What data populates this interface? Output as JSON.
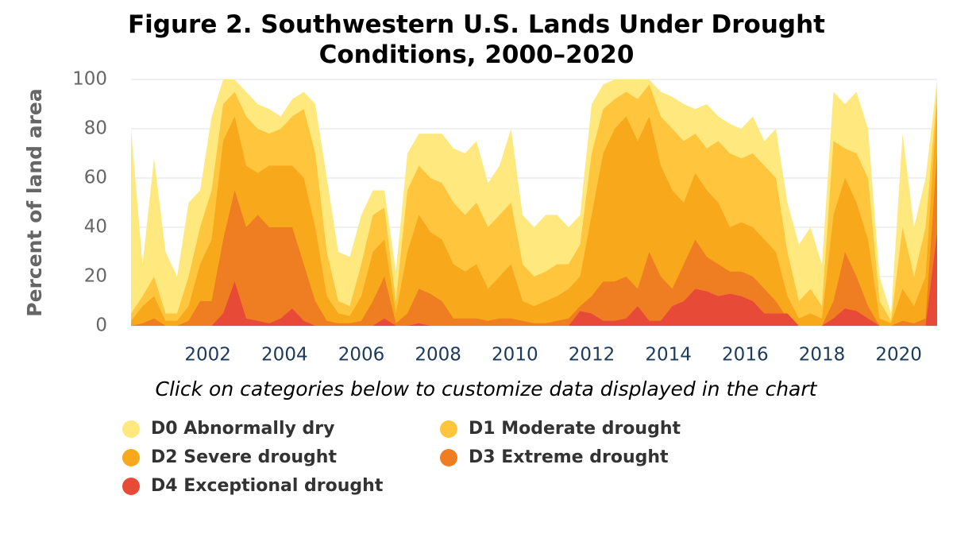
{
  "chart_data": {
    "type": "area",
    "title": "Figure 2. Southwestern U.S. Lands Under Drought Conditions, 2000–2020",
    "subtitle": "Click on categories below to customize data displayed in the chart",
    "y_label": "Percent of land area",
    "xlim": [
      2000,
      2021
    ],
    "xticks": [
      2002,
      2004,
      2006,
      2008,
      2010,
      2012,
      2014,
      2016,
      2018,
      2020
    ],
    "ylim": [
      0,
      100
    ],
    "yticks": [
      0,
      20,
      40,
      60,
      80,
      100
    ],
    "grid": true,
    "x": [
      2000.0,
      2000.3,
      2000.6,
      2000.9,
      2001.2,
      2001.5,
      2001.8,
      2002.1,
      2002.4,
      2002.7,
      2003.0,
      2003.3,
      2003.6,
      2003.9,
      2004.2,
      2004.5,
      2004.8,
      2005.1,
      2005.4,
      2005.7,
      2006.0,
      2006.3,
      2006.6,
      2006.9,
      2007.2,
      2007.5,
      2007.8,
      2008.1,
      2008.4,
      2008.7,
      2009.0,
      2009.3,
      2009.6,
      2009.9,
      2010.2,
      2010.5,
      2010.8,
      2011.1,
      2011.4,
      2011.7,
      2012.0,
      2012.3,
      2012.6,
      2012.9,
      2013.2,
      2013.5,
      2013.8,
      2014.1,
      2014.4,
      2014.7,
      2015.0,
      2015.3,
      2015.6,
      2015.9,
      2016.2,
      2016.5,
      2016.8,
      2017.1,
      2017.4,
      2017.7,
      2018.0,
      2018.3,
      2018.6,
      2018.9,
      2019.2,
      2019.5,
      2019.8,
      2020.1,
      2020.4,
      2020.7,
      2021.0
    ],
    "series": [
      {
        "name": "D0 Abnormally dry",
        "color": "#ffe97f",
        "values": [
          80,
          25,
          68,
          30,
          20,
          50,
          55,
          85,
          100,
          100,
          95,
          90,
          88,
          85,
          92,
          95,
          90,
          60,
          30,
          28,
          45,
          55,
          55,
          22,
          70,
          78,
          78,
          78,
          72,
          70,
          75,
          58,
          65,
          80,
          45,
          40,
          45,
          45,
          40,
          45,
          90,
          98,
          100,
          100,
          100,
          100,
          95,
          93,
          90,
          88,
          90,
          85,
          82,
          80,
          85,
          75,
          80,
          50,
          33,
          40,
          25,
          95,
          90,
          95,
          80,
          20,
          5,
          78,
          40,
          60,
          100
        ]
      },
      {
        "name": "D1 Moderate drought",
        "color": "#fec53d",
        "values": [
          5,
          12,
          20,
          5,
          5,
          20,
          40,
          55,
          90,
          95,
          85,
          80,
          78,
          80,
          85,
          88,
          70,
          30,
          10,
          8,
          25,
          45,
          48,
          10,
          55,
          65,
          60,
          58,
          50,
          45,
          50,
          40,
          45,
          50,
          25,
          20,
          22,
          25,
          25,
          33,
          70,
          88,
          92,
          95,
          92,
          98,
          85,
          80,
          75,
          78,
          72,
          75,
          70,
          68,
          70,
          65,
          60,
          30,
          10,
          15,
          8,
          75,
          72,
          70,
          60,
          10,
          2,
          40,
          20,
          40,
          95
        ]
      },
      {
        "name": "D2 Severe drought",
        "color": "#f8a81b",
        "values": [
          2,
          8,
          12,
          2,
          2,
          8,
          25,
          35,
          75,
          85,
          65,
          62,
          65,
          65,
          65,
          60,
          40,
          12,
          5,
          4,
          12,
          30,
          35,
          5,
          30,
          45,
          38,
          35,
          25,
          22,
          25,
          15,
          20,
          25,
          10,
          8,
          10,
          12,
          15,
          20,
          45,
          70,
          80,
          85,
          75,
          85,
          65,
          55,
          50,
          62,
          55,
          50,
          40,
          42,
          40,
          35,
          30,
          12,
          3,
          5,
          3,
          45,
          60,
          50,
          35,
          3,
          1,
          15,
          8,
          20,
          90
        ]
      },
      {
        "name": "D3 Extreme drought",
        "color": "#ef7e23",
        "values": [
          0,
          1,
          3,
          0,
          0,
          2,
          10,
          10,
          35,
          55,
          40,
          45,
          40,
          40,
          40,
          25,
          10,
          2,
          1,
          1,
          2,
          10,
          20,
          1,
          5,
          15,
          13,
          10,
          3,
          3,
          3,
          2,
          3,
          3,
          2,
          1,
          1,
          2,
          3,
          8,
          12,
          18,
          18,
          20,
          15,
          30,
          20,
          15,
          25,
          35,
          28,
          25,
          22,
          22,
          20,
          15,
          10,
          3,
          0,
          0,
          0,
          10,
          30,
          20,
          8,
          0,
          0,
          2,
          1,
          3,
          70
        ]
      },
      {
        "name": "D4 Exceptional drought",
        "color": "#e84a38",
        "values": [
          0,
          0,
          0,
          0,
          0,
          0,
          0,
          0,
          5,
          18,
          3,
          2,
          1,
          3,
          7,
          2,
          0,
          0,
          0,
          0,
          0,
          0,
          3,
          0,
          0,
          1,
          0,
          0,
          0,
          0,
          0,
          0,
          0,
          0,
          0,
          0,
          0,
          0,
          0,
          6,
          5,
          2,
          2,
          3,
          8,
          2,
          2,
          8,
          10,
          15,
          14,
          12,
          13,
          12,
          10,
          5,
          5,
          5,
          0,
          0,
          0,
          3,
          7,
          6,
          3,
          0,
          0,
          0,
          0,
          0,
          38
        ]
      }
    ]
  }
}
